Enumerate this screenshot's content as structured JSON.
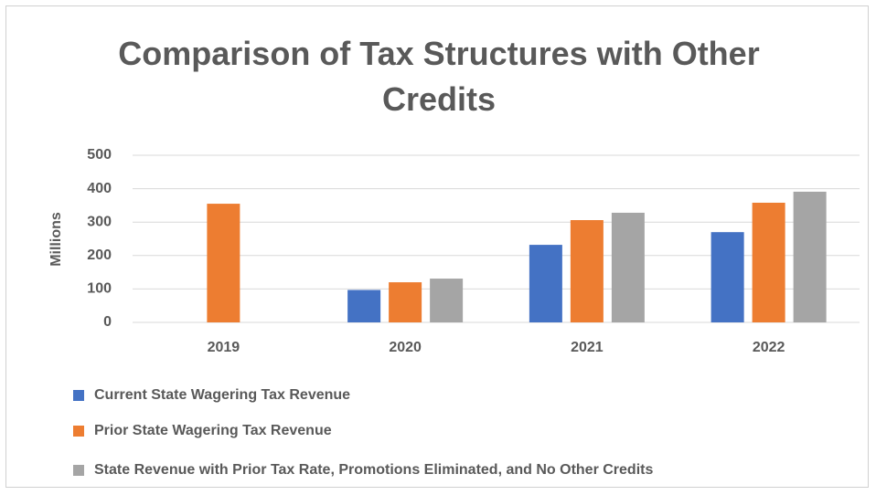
{
  "chart_data": {
    "type": "bar",
    "title": "Comparison of Tax Structures with Other Credits",
    "y_label": "Millions",
    "categories": [
      "2019",
      "2020",
      "2021",
      "2022"
    ],
    "series": [
      {
        "name": "Current State Wagering Tax Revenue",
        "color": "#4472c4",
        "values": [
          null,
          97,
          232,
          270
        ]
      },
      {
        "name": "Prior State Wagering Tax Revenue",
        "color": "#ed7d31",
        "values": [
          355,
          120,
          306,
          358
        ]
      },
      {
        "name": "State Revenue with Prior Tax Rate, Promotions Eliminated, and No Other Credits",
        "color": "#a5a5a5",
        "values": [
          null,
          131,
          328,
          391
        ]
      }
    ],
    "ylim": [
      0,
      500
    ],
    "yticks": [
      0,
      100,
      200,
      300,
      400,
      500
    ],
    "grid": true,
    "legend": "bottom"
  }
}
